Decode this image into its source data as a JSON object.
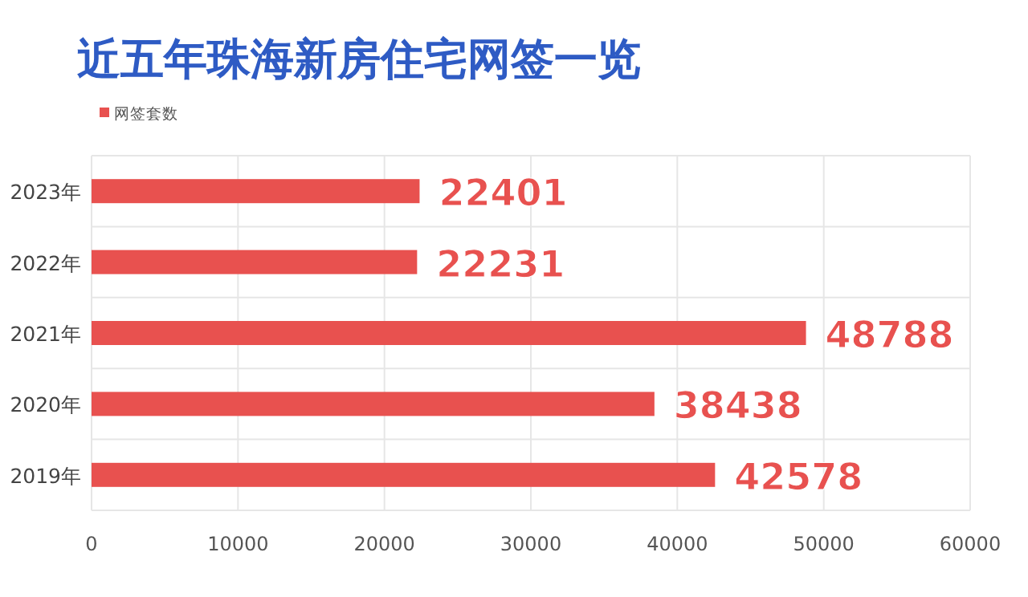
{
  "chart_data": {
    "type": "bar",
    "orientation": "horizontal",
    "title": "近五年珠海新房住宅网签一览",
    "categories": [
      "2023年",
      "2022年",
      "2021年",
      "2020年",
      "2019年"
    ],
    "series": [
      {
        "name": "网签套数",
        "color": "#e8514f",
        "values": [
          22401,
          22231,
          48788,
          38438,
          42578
        ]
      }
    ],
    "xlim": [
      0,
      60000
    ],
    "xticks": [
      0,
      10000,
      20000,
      30000,
      40000,
      50000,
      60000
    ],
    "grid": true,
    "legend": "top left",
    "data_labels": true
  }
}
